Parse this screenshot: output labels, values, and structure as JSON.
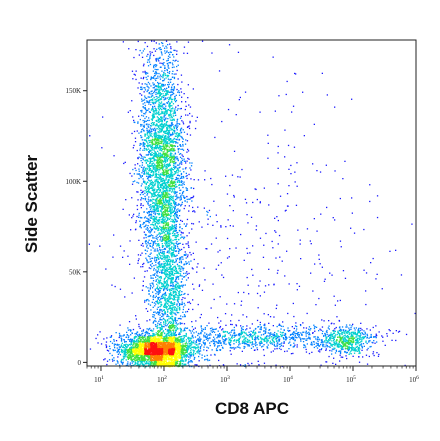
{
  "chart_data": {
    "type": "scatter",
    "xlabel": "CD8 APC",
    "ylabel": "Side Scatter",
    "x_scale": "log",
    "xlim": [
      6,
      1000000
    ],
    "ylim": [
      -2000,
      178000
    ],
    "grid": false,
    "legend": "none",
    "x_ticks": [
      {
        "value": 10,
        "base": "10",
        "exp": "1"
      },
      {
        "value": 100,
        "base": "10",
        "exp": "2"
      },
      {
        "value": 1000,
        "base": "10",
        "exp": "3"
      },
      {
        "value": 10000,
        "base": "10",
        "exp": "4"
      },
      {
        "value": 100000,
        "base": "10",
        "exp": "5"
      },
      {
        "value": 1000000,
        "base": "10",
        "exp": "6"
      }
    ],
    "y_ticks": [
      {
        "value": 0,
        "label": "0"
      },
      {
        "value": 50000,
        "label": "50K"
      },
      {
        "value": 100000,
        "label": "100K"
      },
      {
        "value": 150000,
        "label": "150K"
      }
    ],
    "populations": [
      {
        "name_hint": "CD8-negative low side scatter",
        "x_center": 75,
        "y_center": 7000,
        "x_spread_log10": 0.28,
        "y_spread": 4500,
        "weight": 0.3
      },
      {
        "name_hint": "CD8-negative high side scatter granulocytes",
        "x_center": 90,
        "y_center": 110000,
        "x_spread_log10": 0.18,
        "y_spread": 32000,
        "weight": 0.36
      },
      {
        "name_hint": "CD8-negative intermediate",
        "x_center": 120,
        "y_center": 40000,
        "x_spread_log10": 0.14,
        "y_spread": 25000,
        "weight": 0.14
      },
      {
        "name_hint": "transition band",
        "x_center": 3000,
        "y_center": 14000,
        "x_spread_log10": 0.9,
        "y_spread": 3500,
        "weight": 0.1
      },
      {
        "name_hint": "CD8-positive lymphocytes",
        "x_center": 80000,
        "y_center": 12000,
        "x_spread_log10": 0.18,
        "y_spread": 4000,
        "weight": 0.05
      },
      {
        "name_hint": "sparse background",
        "x_center": 2000,
        "y_center": 60000,
        "x_spread_log10": 1.1,
        "y_spread": 45000,
        "weight": 0.05
      }
    ],
    "density_colors": [
      "#1a1aff",
      "#0080ff",
      "#00d0d0",
      "#40e040",
      "#ffff00",
      "#ff8000",
      "#ff1010"
    ]
  }
}
